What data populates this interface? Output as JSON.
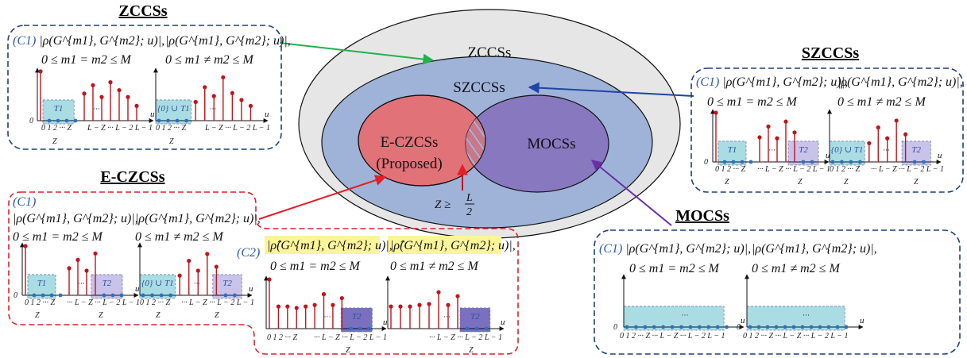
{
  "venn": {
    "outer": "ZCCSs",
    "middle": "SZCCSs",
    "left": "E-CZCSs",
    "left_sub": "(Proposed)",
    "right": "MOCSs",
    "cond_lhs": "Z ≥",
    "cond_num": "L",
    "cond_den": "2"
  },
  "colors": {
    "outer": "#e6e6e6",
    "middle": "#9fb3d9",
    "left": "#e07278",
    "right": "#8878c0",
    "blue_dash": "#1f3f7a",
    "red_dash": "#d9232d",
    "stem": "#c0141c",
    "dot": "#2f6fbf",
    "cyan_box": "#a9dde3",
    "purple_box": "#c9c3ea",
    "hl": "#fbf59a",
    "arrow_green": "#22b14c",
    "arrow_blue": "#2043a6",
    "arrow_red": "#e41f26",
    "arrow_purple": "#6a2fa8"
  },
  "panels": {
    "zccs": {
      "title": "ZCCSs",
      "c1": "(C1)",
      "lhs": "|ρ(G^{m1}, G^{m2}; u)|,",
      "lhs2": "0 ≤ m1 = m2 ≤ M",
      "rhs": "|ρ(G^{m1}, G^{m2}; u)|,",
      "rhs2": "0 ≤ m1 ≠ m2 ≤ M"
    },
    "szccs": {
      "title": "SZCCSs",
      "c1": "(C1)",
      "lhs": "|ρ(G^{m1}, G^{m2}; u)|,",
      "lhs2": "0 ≤ m1 = m2 ≤ M",
      "rhs": "|ρ(G^{m1}, G^{m2}; u)|,",
      "rhs2": "0 ≤ m1 ≠ m2 ≤ M"
    },
    "eczcs": {
      "title": "E-CZCSs",
      "c1": "(C1)",
      "c2": "(C2)",
      "lhs": "|ρ(G^{m1}, G^{m2}; u)|,",
      "lhs2": "0 ≤ m1 = m2 ≤ M",
      "rhs": "|ρ(G^{m1}, G^{m2}; u)|,",
      "rhs2": "0 ≤ m1 ≠ m2 ≤ M",
      "hlhs": "|ρ̂(G^{m1}, G^{m2}; u)|,",
      "hlhs2": "0 ≤ m1 = m2 ≤ M",
      "hrhs": "|ρ̂(G^{m1}, G^{m2}; u)|,",
      "hrhs2": "0 ≤ m1 ≠ m2 ≤ M"
    },
    "mocss": {
      "title": "MOCSs",
      "c1": "(C1)",
      "lhs": "|ρ(G^{m1}, G^{m2}; u)|,",
      "lhs2": "0 ≤ m1 = m2 ≤ M",
      "rhs": "|ρ(G^{m1}, G^{m2}; u)|,",
      "rhs2": "0 ≤ m1 ≠ m2 ≤ M"
    }
  },
  "labels": {
    "t1": "T1",
    "t2": "T2",
    "t01": "{0} ∪ T1",
    "z": "Z",
    "u": "u",
    "zero": "0",
    "ticks_left": "0  1  2 ··· Z",
    "ticks_right": "L − Z ··· L − 2  L − 1",
    "ticks_mid": "··· L − Z ··· L − 2  L − 1",
    "ticks_mocss": "0  1  2 ··· Z    ···   L − Z ··· L − 2  L − 1",
    "dots": "···"
  }
}
